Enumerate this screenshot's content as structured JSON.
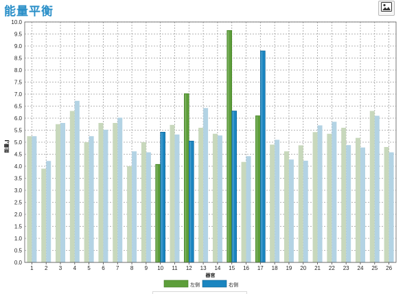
{
  "page": {
    "title": "能量平衡"
  },
  "toolbar": {
    "image_button_icon": "image-icon"
  },
  "chart_data": {
    "type": "bar",
    "title": "",
    "xlabel": "器官",
    "ylabel": "能量,J",
    "ylim": [
      0,
      10.0
    ],
    "ytick_step": 0.5,
    "grid": true,
    "legend_position": "bottom-center",
    "categories": [
      "1",
      "2",
      "3",
      "4",
      "5",
      "6",
      "7",
      "8",
      "9",
      "10",
      "11",
      "12",
      "13",
      "14",
      "15",
      "16",
      "17",
      "18",
      "19",
      "20",
      "21",
      "22",
      "23",
      "24",
      "25",
      "26"
    ],
    "highlighted": [
      "10",
      "12",
      "15",
      "17"
    ],
    "series": [
      {
        "name": "左侧",
        "color": "#5d9e3a",
        "faded_color": "#c8d8bc",
        "values": [
          5.25,
          3.9,
          5.75,
          6.3,
          5.0,
          5.8,
          5.8,
          4.0,
          5.0,
          4.08,
          5.72,
          7.02,
          5.6,
          5.35,
          9.65,
          4.18,
          6.1,
          4.9,
          4.62,
          4.87,
          5.42,
          5.35,
          5.6,
          5.18,
          6.3,
          4.8
        ]
      },
      {
        "name": "右侧",
        "color": "#1a85c0",
        "faded_color": "#b3d3e4",
        "values": [
          5.25,
          4.22,
          5.8,
          6.72,
          5.25,
          5.52,
          6.02,
          4.62,
          4.58,
          5.42,
          5.32,
          5.05,
          6.42,
          5.28,
          6.3,
          4.42,
          8.8,
          5.1,
          4.28,
          4.23,
          5.7,
          5.85,
          4.88,
          4.78,
          6.1,
          4.58
        ]
      }
    ]
  }
}
